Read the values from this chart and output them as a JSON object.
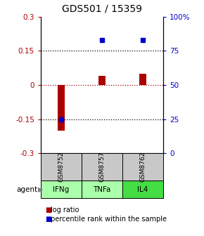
{
  "title": "GDS501 / 15359",
  "samples": [
    "GSM8752",
    "GSM8757",
    "GSM8762"
  ],
  "agents": [
    "IFNg",
    "TNFa",
    "IL4"
  ],
  "log_ratios": [
    -0.2,
    0.04,
    0.05
  ],
  "percentile_ranks": [
    25,
    83,
    83
  ],
  "ylim_left": [
    -0.3,
    0.3
  ],
  "ylim_right": [
    0,
    100
  ],
  "yticks_left": [
    -0.3,
    -0.15,
    0,
    0.15,
    0.3
  ],
  "yticks_right": [
    0,
    25,
    50,
    75,
    100
  ],
  "ytick_labels_left": [
    "-0.3",
    "-0.15",
    "0",
    "0.15",
    "0.3"
  ],
  "ytick_labels_right": [
    "0",
    "25",
    "50",
    "75",
    "100%"
  ],
  "hlines_black": [
    -0.15,
    0.15
  ],
  "hline_red": 0,
  "bar_width": 0.18,
  "red_color": "#aa0000",
  "blue_color": "#0000cc",
  "gray_bg": "#c8c8c8",
  "agent_colors": [
    "#aaffaa",
    "#aaffaa",
    "#44dd44"
  ],
  "title_fontsize": 10,
  "tick_fontsize": 7.5,
  "label_fontsize": 8,
  "legend_fontsize": 7
}
